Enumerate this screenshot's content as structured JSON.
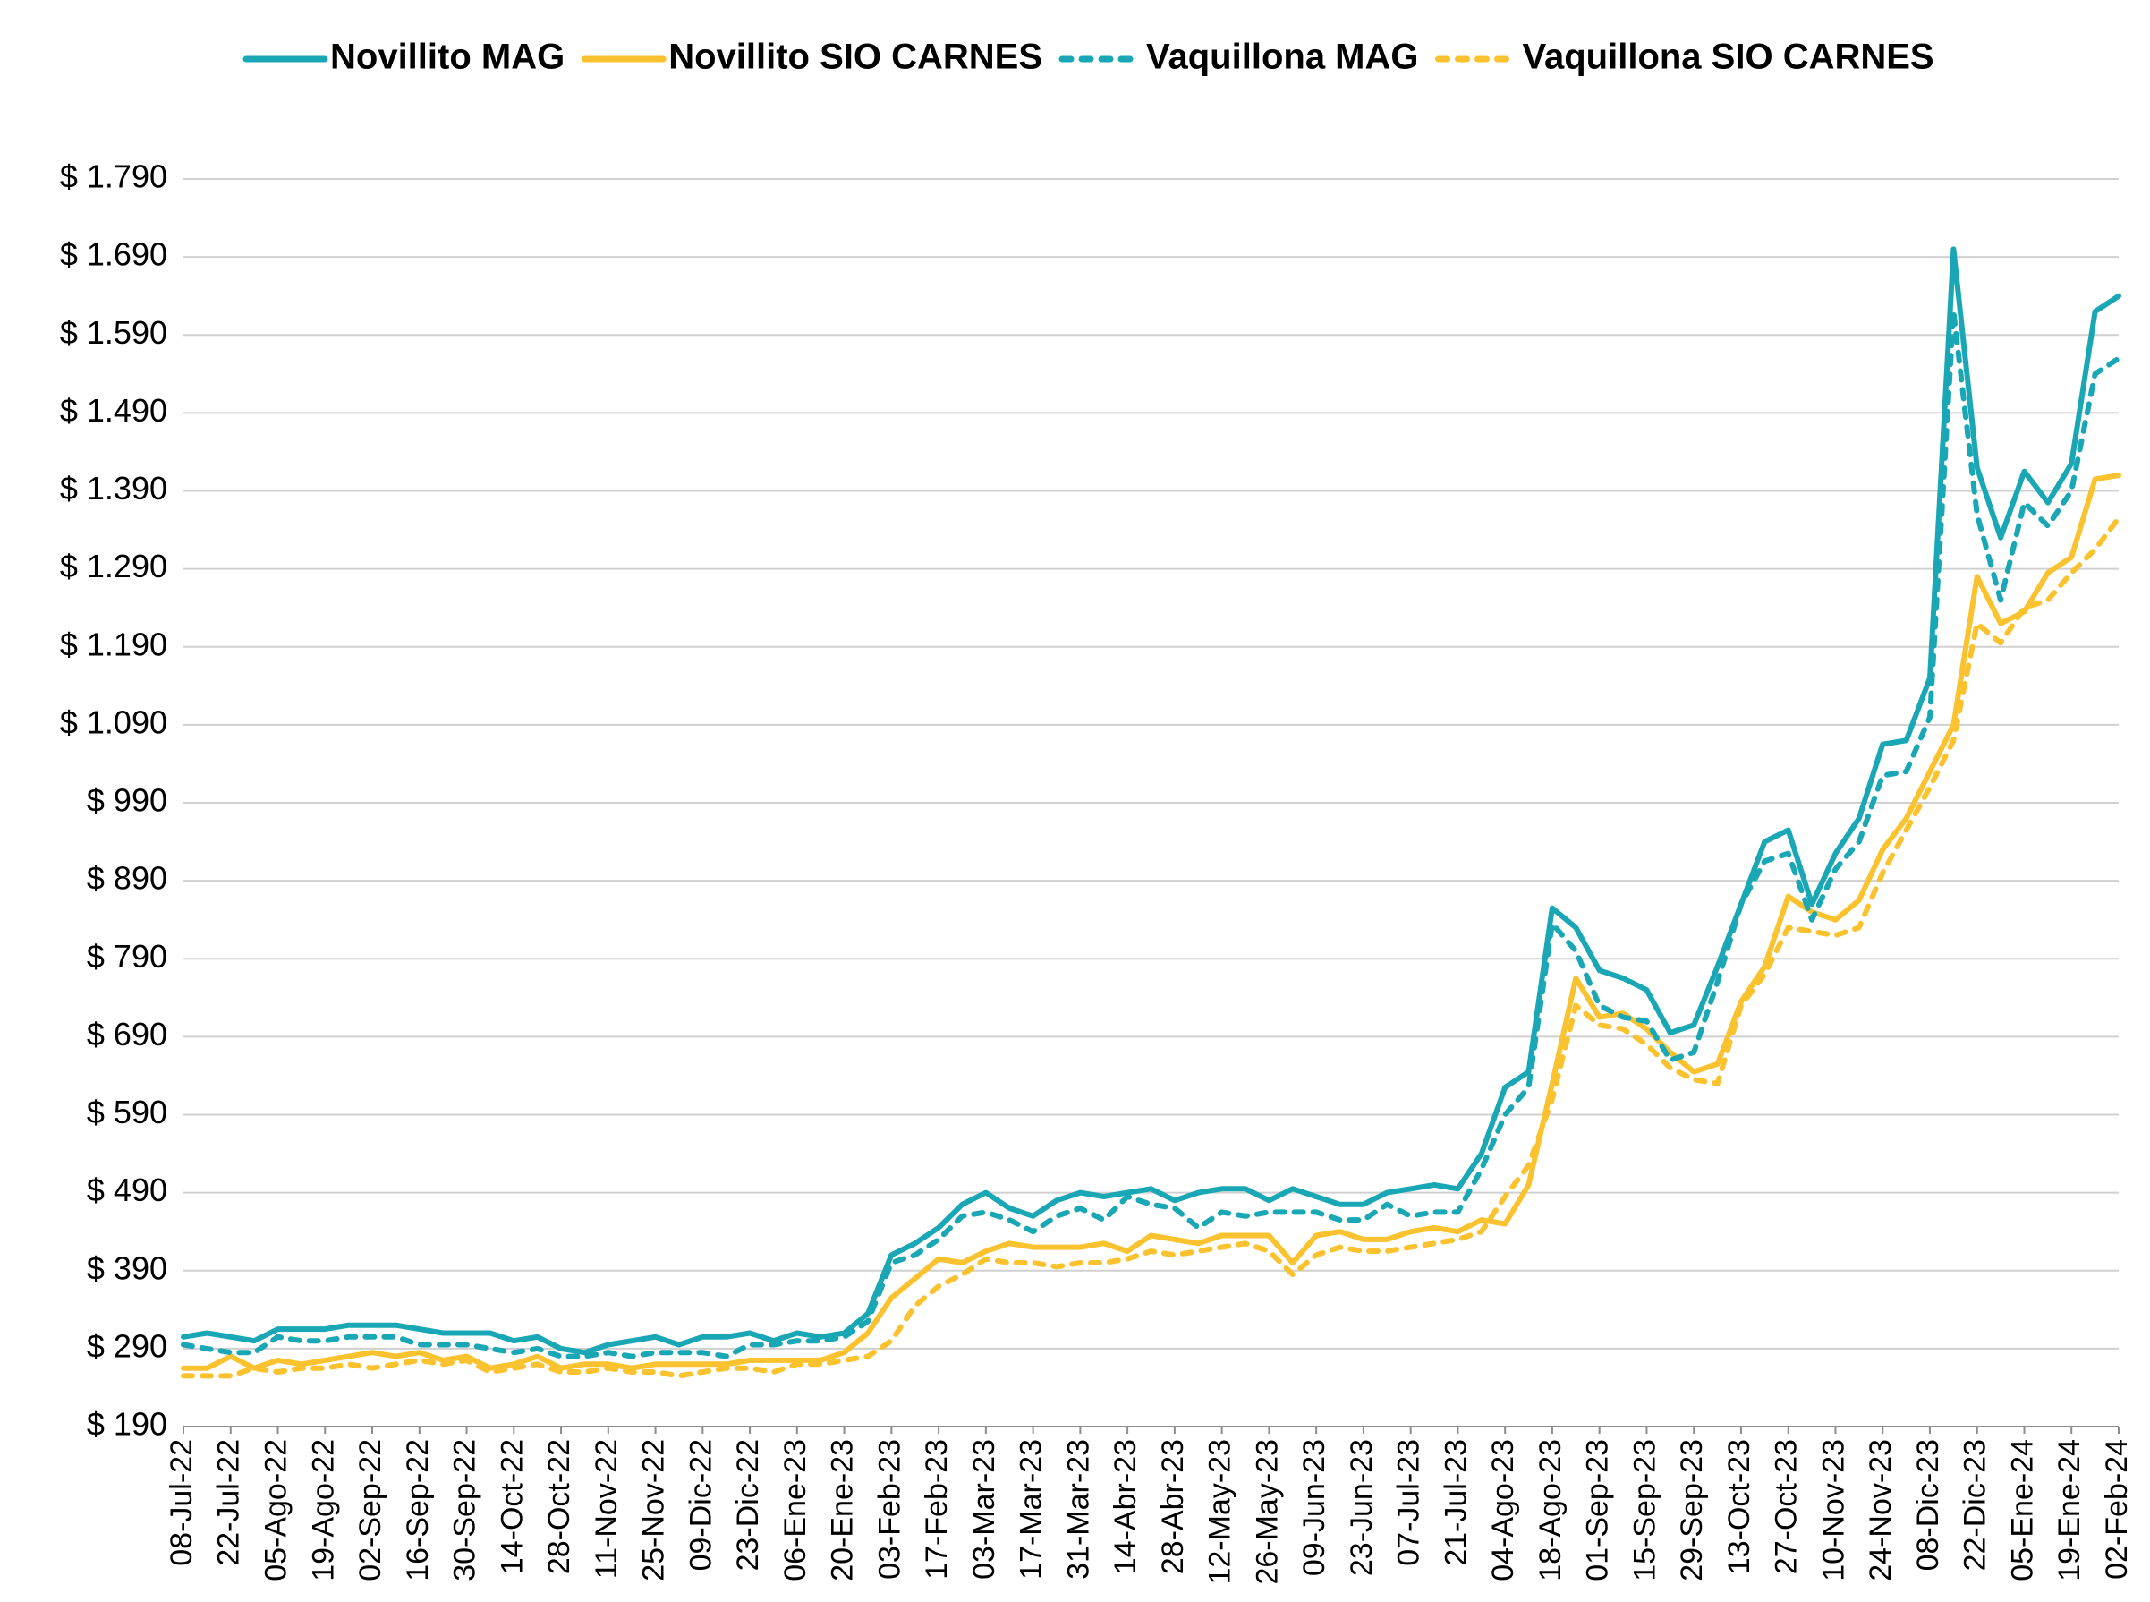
{
  "chart_data": {
    "type": "line",
    "categories": [
      "08-Jul-22",
      null,
      "22-Jul-22",
      null,
      "05-Ago-22",
      null,
      "19-Ago-22",
      null,
      "02-Sep-22",
      null,
      "16-Sep-22",
      null,
      "30-Sep-22",
      null,
      "14-Oct-22",
      null,
      "28-Oct-22",
      null,
      "11-Nov-22",
      null,
      "25-Nov-22",
      null,
      "09-Dic-22",
      null,
      "23-Dic-22",
      null,
      "06-Ene-23",
      null,
      "20-Ene-23",
      null,
      "03-Feb-23",
      null,
      "17-Feb-23",
      null,
      "03-Mar-23",
      null,
      "17-Mar-23",
      null,
      "31-Mar-23",
      null,
      "14-Abr-23",
      null,
      "28-Abr-23",
      null,
      "12-May-23",
      null,
      "26-May-23",
      null,
      "09-Jun-23",
      null,
      "23-Jun-23",
      null,
      "07-Jul-23",
      null,
      "21-Jul-23",
      null,
      "04-Ago-23",
      null,
      "18-Ago-23",
      null,
      "01-Sep-23",
      null,
      "15-Sep-23",
      null,
      "29-Sep-23",
      null,
      "13-Oct-23",
      null,
      "27-Oct-23",
      null,
      "10-Nov-23",
      null,
      "24-Nov-23",
      null,
      "08-Dic-23",
      null,
      "22-Dic-23",
      null,
      "05-Ene-24",
      null,
      "19-Ene-24",
      null,
      "02-Feb-24"
    ],
    "series": [
      {
        "name": "Novillito MAG",
        "color": "#1aa7b5",
        "dashed": false,
        "values": [
          305,
          310,
          305,
          300,
          315,
          315,
          315,
          320,
          320,
          320,
          315,
          310,
          310,
          310,
          300,
          305,
          290,
          285,
          295,
          300,
          305,
          295,
          305,
          305,
          310,
          300,
          310,
          305,
          310,
          335,
          410,
          425,
          445,
          475,
          490,
          470,
          460,
          480,
          490,
          485,
          490,
          495,
          480,
          490,
          495,
          495,
          480,
          495,
          485,
          475,
          475,
          490,
          495,
          500,
          495,
          540,
          625,
          645,
          855,
          830,
          775,
          765,
          750,
          695,
          705,
          780,
          860,
          940,
          955,
          860,
          925,
          970,
          1065,
          1070,
          1150,
          1700,
          1420,
          1330,
          1415,
          1375,
          1425,
          1620,
          1640
        ]
      },
      {
        "name": "Novillito SIO CARNES",
        "color": "#f9c22e",
        "dashed": false,
        "values": [
          265,
          265,
          280,
          265,
          275,
          270,
          275,
          280,
          285,
          280,
          285,
          275,
          280,
          265,
          270,
          280,
          265,
          270,
          270,
          265,
          270,
          270,
          270,
          270,
          275,
          275,
          275,
          275,
          285,
          310,
          355,
          380,
          405,
          400,
          415,
          425,
          420,
          420,
          420,
          425,
          415,
          435,
          430,
          425,
          435,
          435,
          435,
          400,
          435,
          440,
          430,
          430,
          440,
          445,
          440,
          455,
          450,
          500,
          630,
          765,
          715,
          720,
          700,
          670,
          645,
          655,
          735,
          780,
          870,
          850,
          840,
          865,
          930,
          970,
          1030,
          1090,
          1280,
          1220,
          1235,
          1285,
          1305,
          1405,
          1410
        ]
      },
      {
        "name": "Vaquillona MAG",
        "color": "#1aa7b5",
        "dashed": true,
        "values": [
          295,
          290,
          285,
          285,
          305,
          300,
          300,
          305,
          305,
          305,
          295,
          295,
          295,
          290,
          285,
          290,
          280,
          280,
          285,
          280,
          285,
          285,
          285,
          280,
          295,
          295,
          300,
          300,
          305,
          325,
          400,
          410,
          430,
          460,
          465,
          455,
          440,
          460,
          470,
          455,
          485,
          475,
          470,
          445,
          465,
          460,
          465,
          465,
          465,
          455,
          455,
          475,
          460,
          465,
          465,
          520,
          590,
          625,
          835,
          800,
          730,
          715,
          710,
          660,
          670,
          760,
          860,
          915,
          925,
          840,
          905,
          940,
          1025,
          1030,
          1100,
          1620,
          1360,
          1250,
          1375,
          1345,
          1390,
          1540,
          1560
        ]
      },
      {
        "name": "Vaquillona SIO CARNES",
        "color": "#f9c22e",
        "dashed": true,
        "values": [
          255,
          255,
          255,
          265,
          260,
          265,
          265,
          270,
          265,
          270,
          275,
          270,
          275,
          260,
          265,
          270,
          260,
          260,
          265,
          260,
          260,
          255,
          260,
          265,
          265,
          260,
          270,
          270,
          275,
          280,
          300,
          345,
          370,
          385,
          405,
          400,
          400,
          395,
          400,
          400,
          405,
          415,
          410,
          415,
          420,
          425,
          415,
          385,
          410,
          420,
          415,
          415,
          420,
          425,
          430,
          440,
          485,
          525,
          610,
          730,
          705,
          700,
          680,
          650,
          635,
          630,
          730,
          770,
          830,
          825,
          820,
          830,
          900,
          955,
          1010,
          1070,
          1220,
          1195,
          1240,
          1250,
          1285,
          1315,
          1355
        ]
      }
    ],
    "ylim": [
      190,
      1790
    ],
    "yticks": [
      {
        "value": 190,
        "label": "$ 190"
      },
      {
        "value": 290,
        "label": "$ 290"
      },
      {
        "value": 390,
        "label": "$ 390"
      },
      {
        "value": 490,
        "label": "$ 490"
      },
      {
        "value": 590,
        "label": "$ 590"
      },
      {
        "value": 690,
        "label": "$ 690"
      },
      {
        "value": 790,
        "label": "$ 790"
      },
      {
        "value": 890,
        "label": "$ 890"
      },
      {
        "value": 990,
        "label": "$ 990"
      },
      {
        "value": 1090,
        "label": "$ 1.090"
      },
      {
        "value": 1190,
        "label": "$ 1.190"
      },
      {
        "value": 1290,
        "label": "$ 1.290"
      },
      {
        "value": 1390,
        "label": "$ 1.390"
      },
      {
        "value": 1490,
        "label": "$ 1.490"
      },
      {
        "value": 1590,
        "label": "$ 1.590"
      },
      {
        "value": 1690,
        "label": "$ 1.690"
      },
      {
        "value": 1790,
        "label": "$ 1.790"
      }
    ],
    "grid": true,
    "legend": "top"
  }
}
